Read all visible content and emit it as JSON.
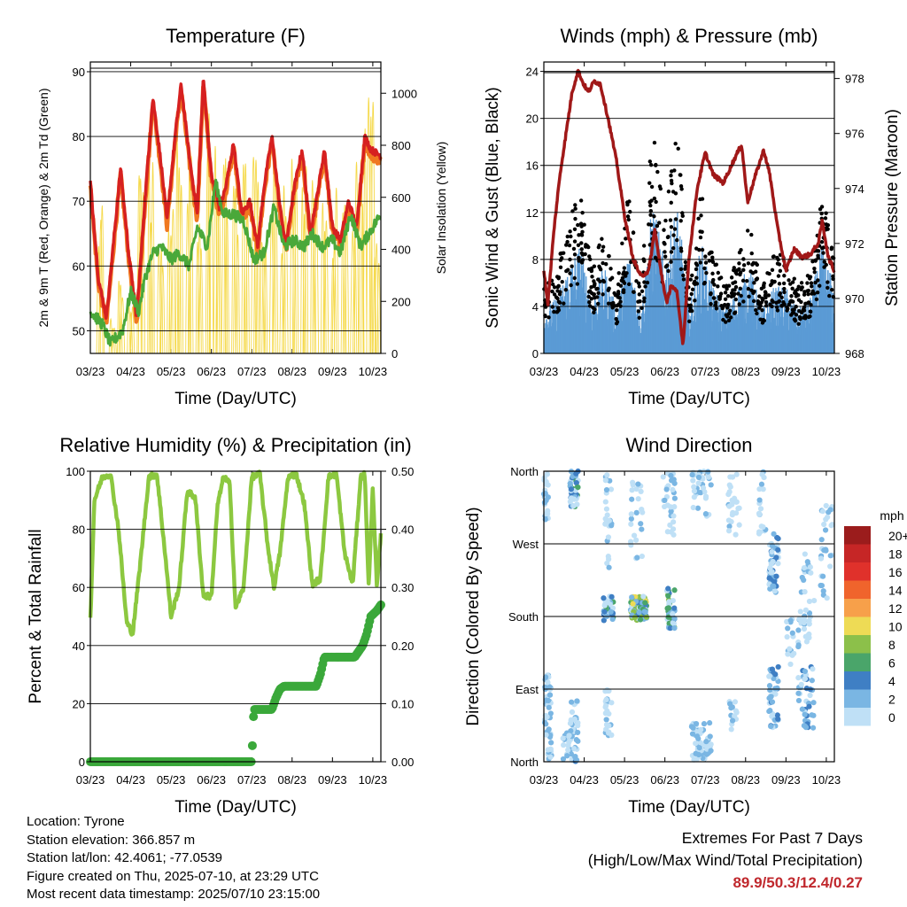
{
  "charts": {
    "temperature": {
      "title": "Temperature (F)",
      "ylabel_left": "2m & 9m T (Red, Orange) & 2m Td (Green)",
      "ylabel_right": "Solar Insolation (Yellow)",
      "xlabel": "Time (Day/UTC)"
    },
    "winds": {
      "title": "Winds (mph) & Pressure (mb)",
      "ylabel_left": "Sonic Wind & Gust (Blue, Black)",
      "ylabel_right": "Station Pressure (Maroon)",
      "xlabel": "Time (Day/UTC)"
    },
    "humidity": {
      "title": "Relative Humidity (%) & Precipitation (in)",
      "ylabel_left": "Percent & Total Rainfall",
      "xlabel": "Time (Day/UTC)"
    },
    "direction": {
      "title": "Wind Direction",
      "ylabel_left": "Direction (Colored By Speed)",
      "xlabel": "Time (Day/UTC)",
      "legend_title": "mph"
    }
  },
  "info": {
    "location": "Location: Tyrone",
    "elevation": "Station elevation: 366.857 m",
    "latlon": "Station lat/lon: 42.4061; -77.0539",
    "created": "Figure created on Thu, 2025-07-10, at 23:29 UTC",
    "recent": "Most recent data timestamp: 2025/07/10 23:15:00"
  },
  "extremes": {
    "title": "Extremes For Past 7 Days",
    "subtitle": "(High/Low/Max Wind/Total Precipitation)",
    "values": "89.9/50.3/12.4/0.27"
  },
  "colors": {
    "temp_2m": "#d62020",
    "temp_9m": "#f07820",
    "dewpoint": "#4aa83a",
    "solar": "#f5d94a",
    "wind": "#5b9bd5",
    "gust": "#000000",
    "pressure": "#a01818",
    "rh": "#8cc840",
    "precip": "#3aa83a"
  },
  "chart_data": [
    {
      "id": "temperature",
      "type": "line",
      "title": "Temperature (F)",
      "xlabel": "Time (Day/UTC)",
      "ylabel": "2m & 9m T (Red, Orange) & 2m Td (Green)",
      "y2label": "Solar Insolation (Yellow)",
      "x_ticks": [
        "03/23",
        "04/23",
        "05/23",
        "06/23",
        "07/23",
        "08/23",
        "09/23",
        "10/23"
      ],
      "xlim": [
        0,
        7.2
      ],
      "ylim": [
        46.5,
        91.5
      ],
      "y_ticks": [
        50,
        60,
        70,
        80,
        90
      ],
      "y2lim": [
        0,
        1120
      ],
      "y2_ticks": [
        0,
        200,
        400,
        600,
        800,
        1000
      ],
      "grid": "horizontal",
      "series": [
        {
          "name": "2m T",
          "color": "#d62020",
          "x": [
            0,
            0.2,
            0.4,
            0.55,
            0.75,
            0.95,
            1.15,
            1.35,
            1.55,
            1.75,
            1.9,
            2.1,
            2.25,
            2.45,
            2.65,
            2.8,
            3.0,
            3.2,
            3.35,
            3.55,
            3.75,
            3.95,
            4.15,
            4.3,
            4.5,
            4.7,
            4.85,
            5.05,
            5.25,
            5.45,
            5.6,
            5.8,
            6.0,
            6.2,
            6.4,
            6.6,
            6.8,
            6.95,
            7.2
          ],
          "y": [
            73,
            58,
            52,
            62,
            75,
            62,
            52,
            70,
            86,
            76,
            67,
            80,
            88,
            77,
            68,
            89,
            74,
            69,
            72,
            79,
            68,
            70,
            63,
            72,
            80,
            69,
            63,
            72,
            78,
            65,
            70,
            78,
            66,
            64,
            70,
            66,
            80,
            78,
            77
          ]
        },
        {
          "name": "Dewpoint",
          "color": "#4aa83a",
          "x": [
            0,
            0.3,
            0.5,
            0.8,
            1.0,
            1.2,
            1.35,
            1.55,
            1.75,
            2.0,
            2.2,
            2.45,
            2.65,
            2.9,
            3.1,
            3.3,
            3.55,
            3.8,
            4.05,
            4.3,
            4.55,
            4.8,
            5.05,
            5.3,
            5.5,
            5.75,
            6.0,
            6.2,
            6.45,
            6.7,
            6.9,
            7.2
          ],
          "y": [
            53,
            51,
            48,
            50,
            56,
            53,
            58,
            62,
            63,
            61,
            62,
            60,
            66,
            63,
            73,
            68,
            68,
            67,
            61,
            62,
            69,
            63,
            64,
            63,
            65,
            63,
            64,
            62,
            68,
            63,
            65,
            68
          ]
        }
      ]
    },
    {
      "id": "winds",
      "type": "scatter",
      "title": "Winds (mph) & Pressure (mb)",
      "xlabel": "Time (Day/UTC)",
      "ylabel": "Sonic Wind & Gust (Blue, Black)",
      "y2label": "Station Pressure (Maroon)",
      "x_ticks": [
        "03/23",
        "04/23",
        "05/23",
        "06/23",
        "07/23",
        "08/23",
        "09/23",
        "10/23"
      ],
      "xlim": [
        0,
        7.2
      ],
      "ylim": [
        0,
        24.8
      ],
      "y_ticks": [
        0,
        4,
        8,
        12,
        16,
        20,
        24
      ],
      "y2lim": [
        968,
        978.6
      ],
      "y2_ticks": [
        968,
        970,
        972,
        974,
        976,
        978
      ],
      "grid": "horizontal",
      "series": [
        {
          "name": "Station Pressure",
          "color": "#a01818",
          "x": [
            0,
            0.1,
            0.25,
            0.4,
            0.55,
            0.7,
            0.85,
            0.95,
            1.1,
            1.25,
            1.4,
            1.6,
            1.8,
            2.0,
            2.2,
            2.4,
            2.6,
            2.75,
            2.9,
            3.05,
            3.15,
            3.3,
            3.45,
            3.6,
            3.8,
            4.0,
            4.2,
            4.45,
            4.7,
            4.9,
            5.05,
            5.25,
            5.45,
            5.6,
            5.8,
            6.0,
            6.2,
            6.4,
            6.6,
            6.8,
            6.9,
            7.05,
            7.2
          ],
          "y": [
            971,
            969.8,
            972.5,
            974.5,
            976,
            977.5,
            978.3,
            977.9,
            977.5,
            977.9,
            977.8,
            976.5,
            975,
            973,
            971.5,
            970.8,
            971,
            972.5,
            971,
            969.8,
            970.5,
            970.2,
            968.3,
            971.5,
            974,
            975.3,
            974.5,
            974.2,
            975,
            975.6,
            973.5,
            974.5,
            975.4,
            974.5,
            972.5,
            971,
            971.8,
            971.5,
            971.6,
            972,
            972.8,
            971.5,
            971
          ]
        },
        {
          "name": "Sonic Wind (mean)",
          "color": "#5b9bd5",
          "x": [
            0,
            0.3,
            0.6,
            0.9,
            1.2,
            1.5,
            1.8,
            2.1,
            2.4,
            2.7,
            3.0,
            3.3,
            3.6,
            3.9,
            4.2,
            4.5,
            4.8,
            5.1,
            5.4,
            5.7,
            6.0,
            6.3,
            6.6,
            6.9,
            7.2
          ],
          "y": [
            2,
            2.5,
            4,
            5,
            2.5,
            4,
            2,
            5,
            2,
            7,
            4,
            7,
            2,
            5,
            3,
            2,
            3,
            4,
            2,
            3,
            3,
            2,
            2.5,
            5,
            3
          ]
        }
      ]
    },
    {
      "id": "humidity",
      "type": "line",
      "title": "Relative Humidity (%) & Precipitation (in)",
      "xlabel": "Time (Day/UTC)",
      "ylabel": "Percent & Total Rainfall",
      "x_ticks": [
        "03/23",
        "04/23",
        "05/23",
        "06/23",
        "07/23",
        "08/23",
        "09/23",
        "10/23"
      ],
      "xlim": [
        0,
        7.2
      ],
      "ylim": [
        0,
        100
      ],
      "y_ticks": [
        0,
        20,
        40,
        60,
        80,
        100
      ],
      "y2lim": [
        0,
        0.5
      ],
      "y2_ticks": [
        "0.00",
        "0.10",
        "0.20",
        "0.30",
        "0.40",
        "0.50"
      ],
      "grid": "horizontal",
      "series": [
        {
          "name": "Relative Humidity",
          "color": "#8cc840",
          "x": [
            0,
            0.1,
            0.3,
            0.5,
            0.7,
            0.9,
            1.05,
            1.25,
            1.45,
            1.65,
            1.85,
            2.0,
            2.2,
            2.4,
            2.6,
            2.8,
            3.0,
            3.15,
            3.3,
            3.45,
            3.6,
            3.8,
            4.0,
            4.2,
            4.4,
            4.55,
            4.7,
            4.9,
            5.1,
            5.3,
            5.5,
            5.7,
            5.9,
            6.1,
            6.3,
            6.5,
            6.7,
            6.8,
            6.9,
            7.0,
            7.1,
            7.2
          ],
          "y": [
            49,
            90,
            98,
            99,
            80,
            48,
            44,
            70,
            98,
            99,
            72,
            50,
            60,
            93,
            91,
            57,
            57,
            88,
            98,
            96,
            53,
            60,
            98,
            99,
            74,
            60,
            72,
            98,
            99,
            89,
            61,
            63,
            98,
            99,
            72,
            61,
            98,
            99,
            60,
            95,
            60,
            78
          ]
        },
        {
          "name": "Total Precipitation",
          "color": "#3aa83a",
          "axis": "right",
          "x": [
            0,
            4.0,
            4.05,
            4.5,
            4.6,
            4.7,
            4.8,
            5.6,
            5.7,
            5.8,
            6.55,
            6.65,
            6.75,
            6.85,
            6.95,
            7.1,
            7.2
          ],
          "y": [
            0,
            0,
            0.09,
            0.09,
            0.11,
            0.125,
            0.13,
            0.13,
            0.15,
            0.18,
            0.18,
            0.19,
            0.2,
            0.22,
            0.25,
            0.26,
            0.27
          ]
        }
      ]
    },
    {
      "id": "direction",
      "type": "scatter",
      "title": "Wind Direction",
      "xlabel": "Time (Day/UTC)",
      "ylabel": "Direction (Colored By Speed)",
      "x_ticks": [
        "03/23",
        "04/23",
        "05/23",
        "06/23",
        "07/23",
        "08/23",
        "09/23",
        "10/23"
      ],
      "xlim": [
        0,
        7.2
      ],
      "y_ticks": [
        "North",
        "East",
        "South",
        "West",
        "North"
      ],
      "ylim": [
        0,
        360
      ],
      "grid": "horizontal",
      "legend": {
        "title": "mph",
        "labels": [
          "20+",
          "18",
          "16",
          "14",
          "12",
          "10",
          "8",
          "6",
          "4",
          "2",
          "0"
        ],
        "colors": [
          "#9b1c1c",
          "#c62626",
          "#e0312b",
          "#f0642c",
          "#f7a04a",
          "#eedb55",
          "#8cc04a",
          "#4aa56a",
          "#3f7fc4",
          "#7ab6e3",
          "#bfe0f6"
        ]
      }
    }
  ]
}
